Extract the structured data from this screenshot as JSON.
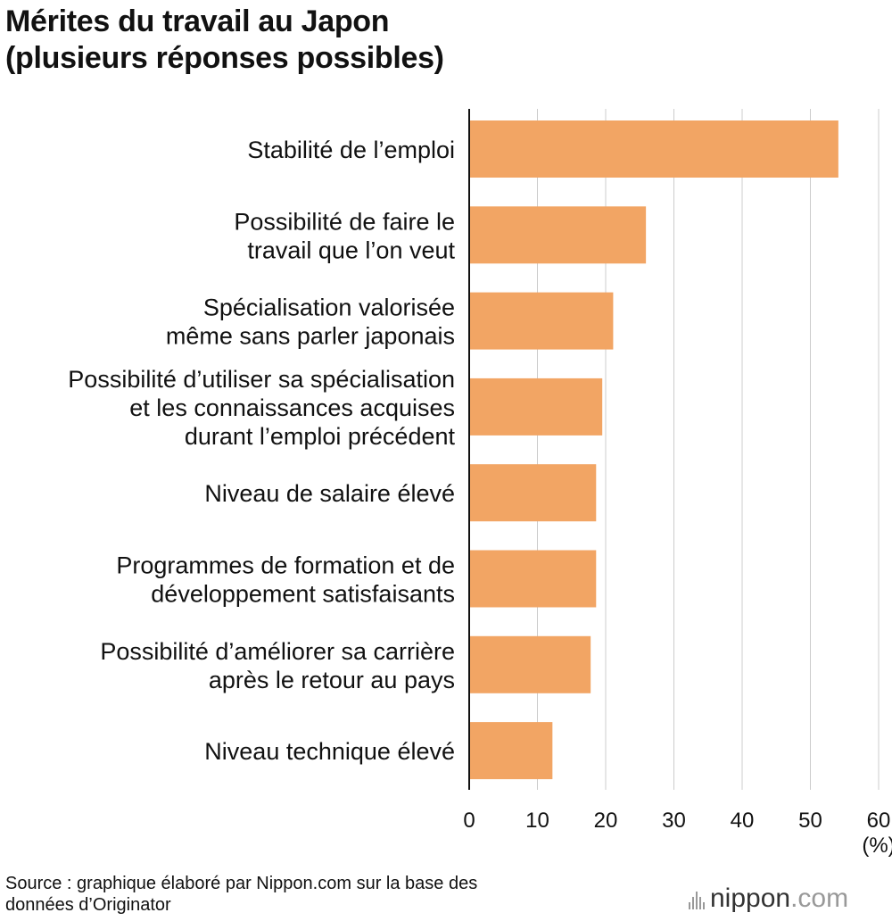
{
  "title": {
    "line1": "Mérites du travail au Japon",
    "line2": "(plusieurs réponses possibles)"
  },
  "chart_data": {
    "type": "bar",
    "orientation": "horizontal",
    "title": "Mérites du travail au Japon (plusieurs réponses possibles)",
    "xlabel": "(%)",
    "ylabel": "",
    "xlim": [
      0,
      60
    ],
    "x_ticks": [
      0,
      10,
      20,
      30,
      40,
      50,
      60
    ],
    "grid": true,
    "bar_color": "#f2a564",
    "categories": [
      [
        "Stabilité de l’emploi"
      ],
      [
        "Possibilité de faire le",
        "travail que l’on veut"
      ],
      [
        "Spécialisation valorisée",
        "même sans parler japonais"
      ],
      [
        "Possibilité d’utiliser sa spécialisation",
        "et les connaissances acquises",
        "durant l’emploi précédent"
      ],
      [
        "Niveau de salaire élevé"
      ],
      [
        "Programmes de formation et de",
        "développement satisfaisants"
      ],
      [
        "Possibilité d’améliorer sa carrière",
        "après le retour au pays"
      ],
      [
        "Niveau technique élevé"
      ]
    ],
    "values": [
      54.1,
      25.9,
      21.1,
      19.5,
      18.6,
      18.6,
      17.8,
      12.2
    ]
  },
  "source": {
    "line1": "Source : graphique élaboré par Nippon.com sur la base des",
    "line2": "données d’Originator"
  },
  "logo": {
    "name": "nippon",
    "suffix": ".com"
  }
}
